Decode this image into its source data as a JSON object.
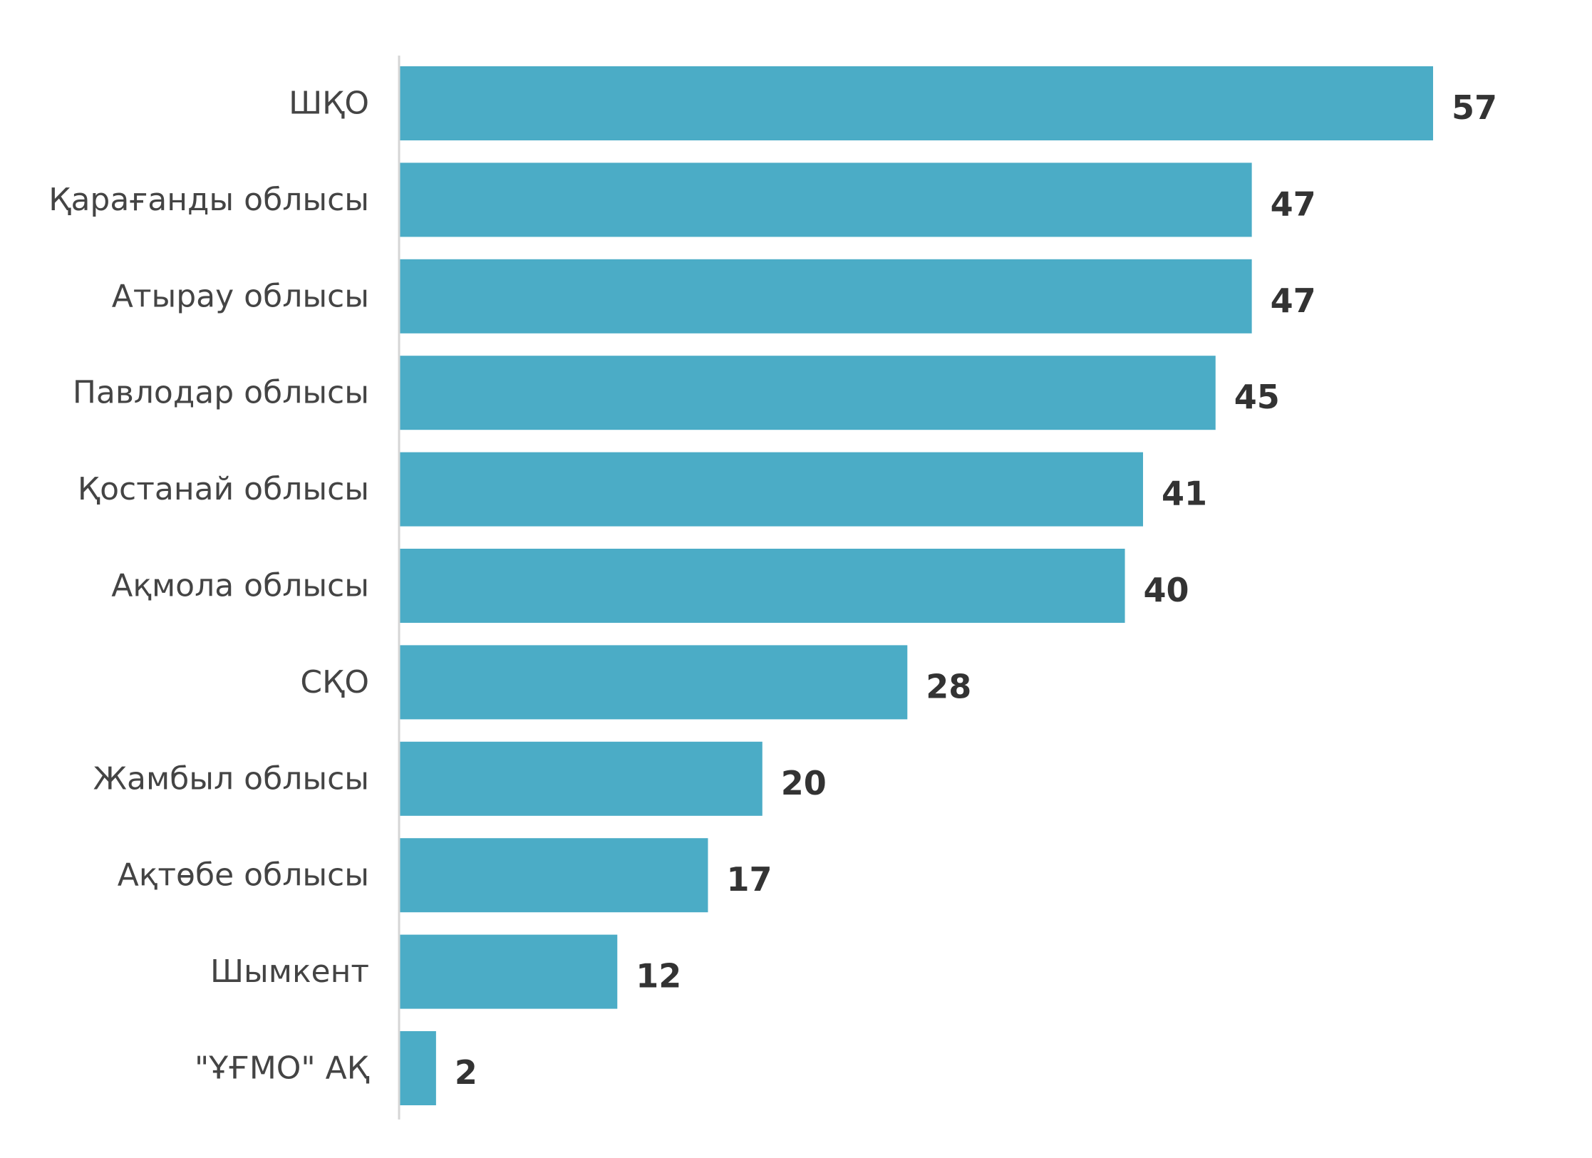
{
  "chart_data": {
    "type": "bar",
    "orientation": "horizontal",
    "title": "",
    "xlabel": "",
    "ylabel": "",
    "categories": [
      "ШҚО",
      "Қарағанды облысы",
      "Атырау облысы",
      "Павлодар облысы",
      "Қостанай облысы",
      "Ақмола облысы",
      "СҚО",
      "Жамбыл облысы",
      "Ақтөбе облысы",
      "Шымкент",
      "\"ҰҒМО\" АҚ"
    ],
    "values": [
      57,
      47,
      47,
      45,
      41,
      40,
      28,
      20,
      17,
      12,
      2
    ],
    "xlim": [
      0,
      57
    ],
    "grid": false,
    "legend": "none",
    "data_labels": true
  },
  "colors": {
    "bar": "#4bacc6",
    "category_text": "#444444",
    "value_text": "#333333",
    "axis": "#d6d6d6"
  }
}
